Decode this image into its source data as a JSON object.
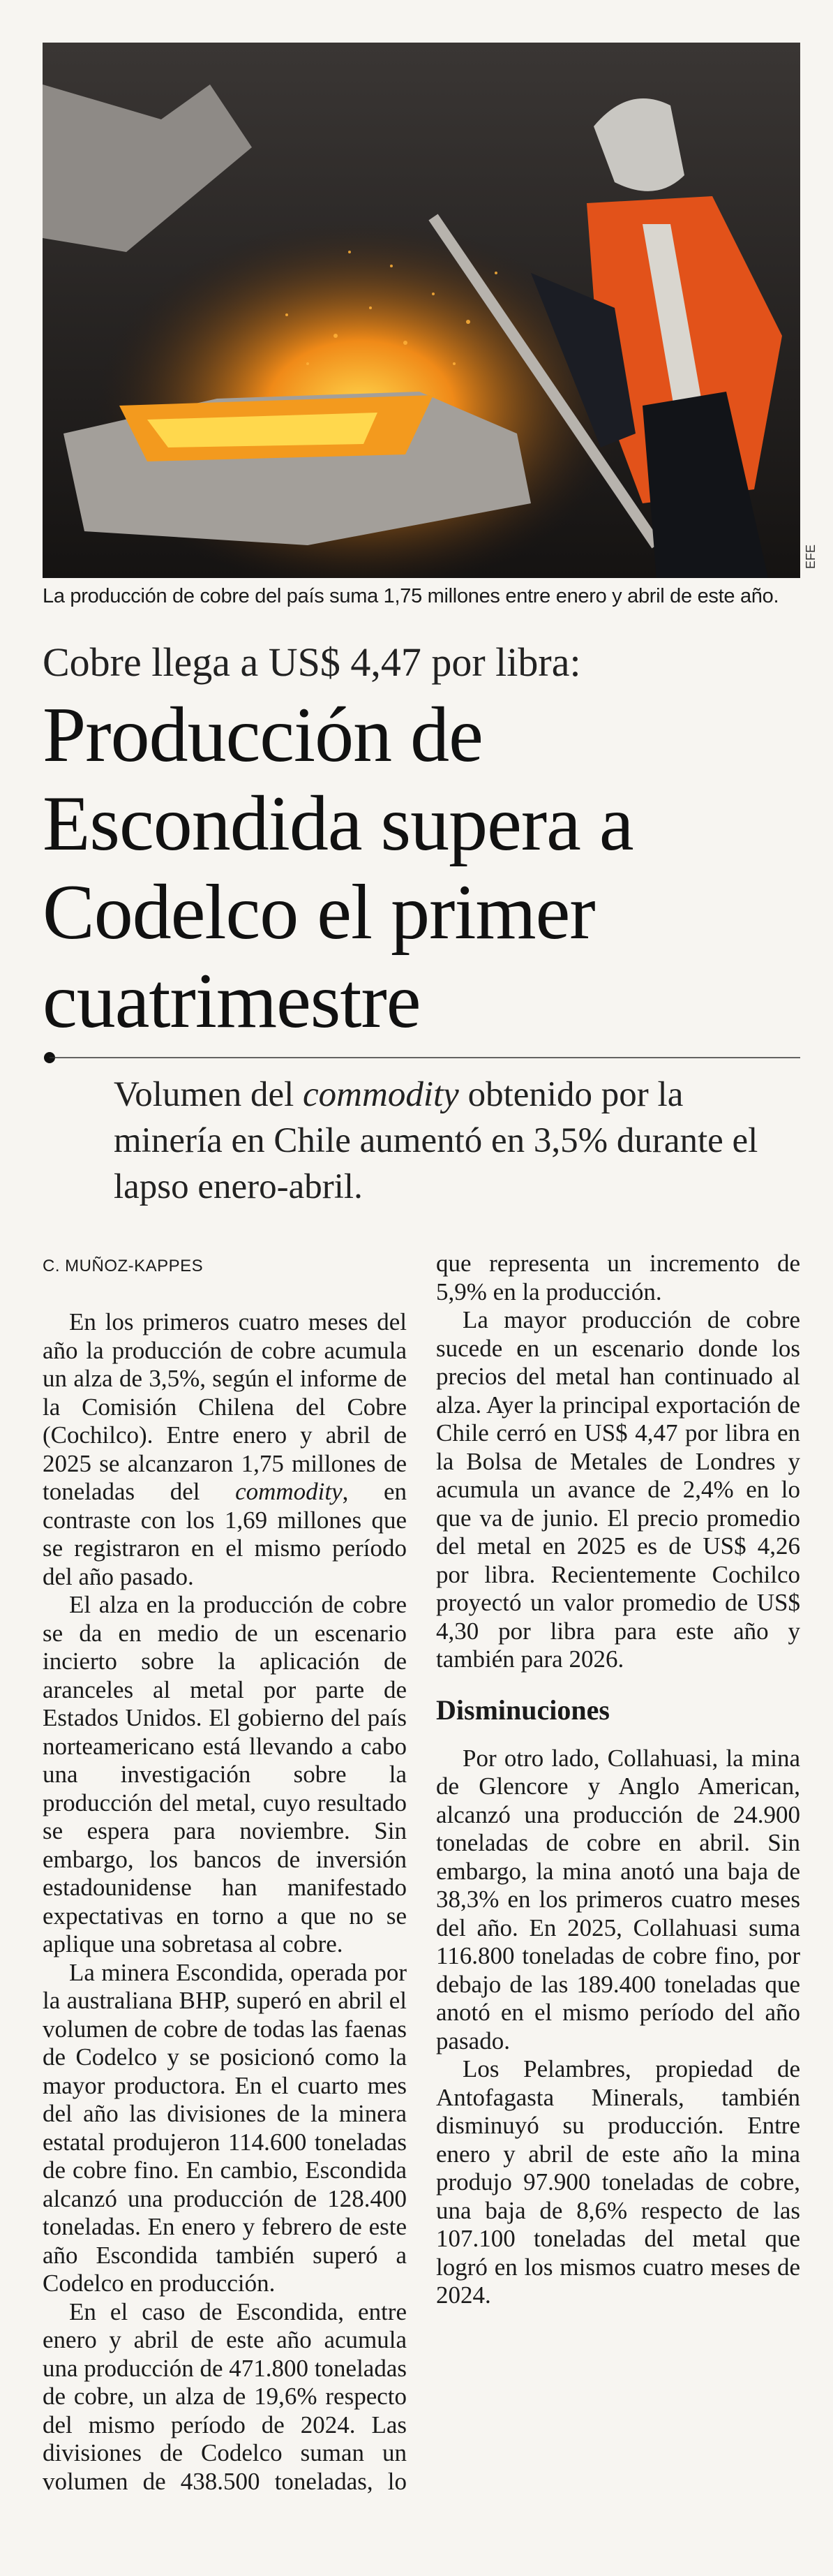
{
  "photo": {
    "credit": "EFE",
    "caption": "La producción de cobre del país suma 1,75 millones entre enero y abril de este año."
  },
  "kicker": "Cobre llega a US$ 4,47 por libra:",
  "headline": "Producción de Escondida supera a Codelco el primer cuatrimestre",
  "subheadline": [
    "Volumen del ",
    "commodity",
    " obtenido por la minería en Chile aumentó en 3,5% durante el lapso enero-abril."
  ],
  "article": {
    "byline": "C. MUÑOZ-KAPPES",
    "paragraphs": [
      [
        "En los primeros cuatro meses del año la producción de cobre acumula un alza de 3,5%, según el informe de la Comisión Chilena del Cobre (Cochilco). Entre enero y abril de 2025 se alcanzaron 1,75 millones de toneladas del ",
        "commodity",
        ", en contraste con los 1,69 millones que se registraron en el mismo período del año pasado."
      ],
      "El alza en la producción de cobre se da en medio de un escenario incierto sobre la aplicación de aranceles al metal por parte de Estados Unidos. El gobierno del país norteamericano está llevando a cabo una investigación sobre la producción del metal, cuyo resultado se espera para noviembre. Sin embargo, los bancos de inversión estadounidense han manifestado expectativas en torno a que no se aplique una sobretasa al cobre.",
      "La minera Escondida, operada por la australiana BHP, superó en abril el volumen de cobre de todas las faenas de Codelco y se posicionó como la mayor productora. En el cuarto mes del año las divisiones de la minera estatal produjeron 114.600 toneladas de cobre fino. En cambio, Escondida alcanzó una producción de 128.400 toneladas. En enero y febrero de este año Escondida también superó a Codelco en producción.",
      "En el caso de Escondida, entre enero y abril de este año acumula una producción de 471.800 toneladas de cobre, un alza de 19,6% respecto del mismo período de 2024. Las divisiones de Codelco suman un volumen de 438.500 toneladas, lo que representa un incremento de 5,9% en la producción.",
      "La mayor producción de cobre sucede en un escenario donde los precios del metal han continuado al alza. Ayer la principal exportación de Chile cerró en US$ 4,47 por libra en la Bolsa de Metales de Londres y acumula un avance de 2,4% en lo que va de junio. El precio promedio del metal en 2025 es de US$ 4,26 por libra. Recientemente Cochilco proyectó un valor promedio de US$ 4,30 por libra para este año y también para 2026."
    ],
    "section_heading": "Disminuciones",
    "section_paragraphs": [
      "Por otro lado, Collahuasi, la mina de Glencore y Anglo American, alcanzó una producción de 24.900 toneladas de cobre en abril. Sin embargo, la mina anotó una baja de 38,3% en los primeros cuatro meses del año. En 2025, Collahuasi suma 116.800 toneladas de cobre fino, por debajo de las 189.400 toneladas que anotó en el mismo período del año pasado.",
      "Los Pelambres, propiedad de Antofagasta Minerals, también disminuyó su producción. Entre enero y abril de este año la mina produjo 97.900 toneladas de cobre, una baja de 8,6% respecto de las 107.100 toneladas del metal que logró en los mismos cuatro meses de 2024."
    ]
  }
}
